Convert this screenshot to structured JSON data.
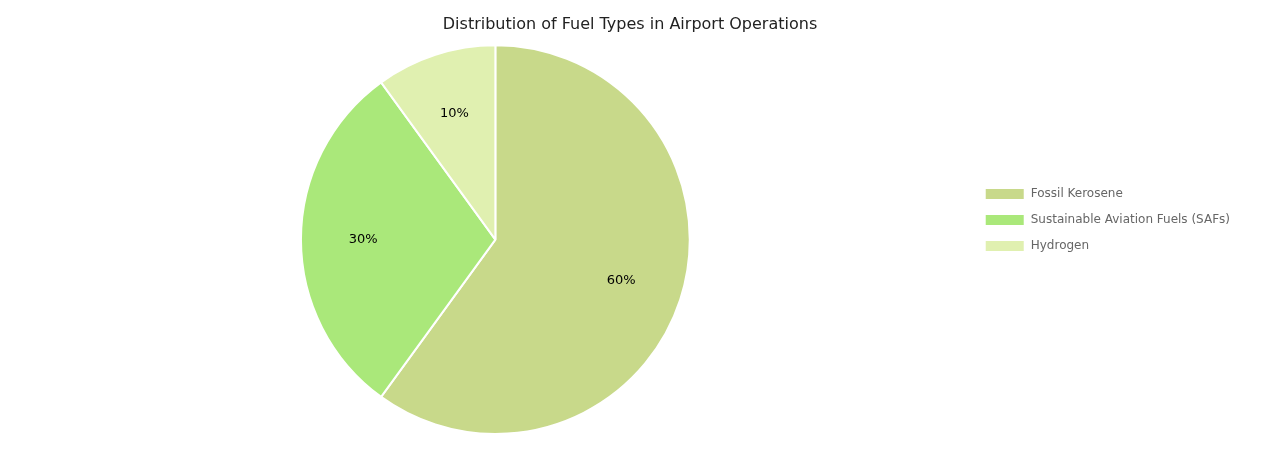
{
  "chart_data": {
    "type": "pie",
    "title": "Distribution of Fuel Types in Airport Operations",
    "categories": [
      "Fossil Kerosene",
      "Sustainable Aviation Fuels (SAFs)",
      "Hydrogen"
    ],
    "values": [
      60,
      30,
      10
    ],
    "value_labels": [
      "60%",
      "30%",
      "10%"
    ],
    "colors": [
      "#c8d98a",
      "#aae87a",
      "#e0f0b0"
    ],
    "data_labels": true,
    "legend": "right"
  }
}
